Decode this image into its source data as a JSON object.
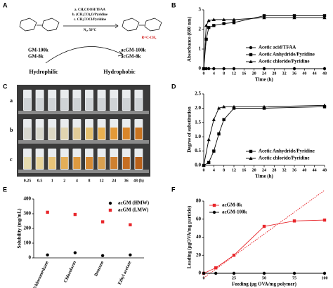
{
  "panel_labels": [
    "A",
    "B",
    "C",
    "D",
    "E",
    "F"
  ],
  "scheme": {
    "conditions": [
      "a. CH₃COOH/TFAA",
      "b. (CH₃CO)₂O/Pyridine",
      "c. CH₃COCl/Pyridine",
      "N₂, 50°C"
    ],
    "start": [
      "GM-100k",
      "GM-8k"
    ],
    "product": [
      "acGM-100k",
      "acGM-8k"
    ],
    "left_label": "Hydrophilic",
    "right_label": "Hydrophobic",
    "r_group": "R=C-CH₃"
  },
  "photo": {
    "rows": [
      "a",
      "b",
      "c"
    ],
    "times": [
      "0.25",
      "0.5",
      "1",
      "2",
      "4",
      "8",
      "12",
      "24",
      "36",
      "48 (h)"
    ]
  },
  "chart_data": [
    {
      "type": "line",
      "x_label": "Time (h)",
      "y_label": "Absorbance (600 nm)",
      "x": [
        0,
        1,
        2,
        4,
        8,
        12,
        24,
        36,
        48
      ],
      "xlim": [
        0,
        48
      ],
      "xticks": [
        0,
        4,
        8,
        12,
        16,
        20,
        24,
        28,
        32,
        36,
        40,
        44,
        48
      ],
      "ylim": [
        0,
        3
      ],
      "yticks": [
        0,
        1,
        2,
        3
      ],
      "legend": "lower right",
      "series": [
        {
          "name": "Acetic acid/TFAA",
          "color": "#000000",
          "marker": "circle",
          "values": [
            0,
            0,
            0,
            0,
            0,
            0,
            0,
            0,
            0
          ]
        },
        {
          "name": "Acetic Anhydride/Pyridine",
          "color": "#000000",
          "marker": "square",
          "values": [
            0,
            1.5,
            2.1,
            2.2,
            2.3,
            2.35,
            2.7,
            2.7,
            2.7
          ]
        },
        {
          "name": "Acetic chloride/Pyridine",
          "color": "#000000",
          "marker": "triangle",
          "values": [
            0,
            2.2,
            2.45,
            2.5,
            2.5,
            2.5,
            2.6,
            2.6,
            2.6
          ]
        }
      ]
    },
    {
      "type": "line",
      "x_label": "Time (h)",
      "y_label": "Degree of substitution",
      "x": [
        0,
        2,
        4,
        6,
        8,
        12,
        24,
        48
      ],
      "xlim": [
        0,
        48
      ],
      "xticks": [
        0,
        4,
        8,
        12,
        16,
        20,
        24,
        28,
        32,
        36,
        40,
        44,
        48
      ],
      "ylim": [
        0,
        2.5
      ],
      "yticks": [
        {
          "value": 0,
          "label": "0.0"
        },
        0.5,
        {
          "value": 1,
          "label": "1.0"
        },
        1.5,
        {
          "value": 2,
          "label": "2.0"
        },
        2.5
      ],
      "legend": "lower right",
      "series": [
        {
          "name": "Acetic Anhydride/Pyridine",
          "color": "#000000",
          "marker": "square",
          "values": [
            0,
            0.1,
            0.5,
            1.1,
            1.6,
            2.0,
            2.0,
            2.05
          ]
        },
        {
          "name": "Acetic chloride/Pyridine",
          "color": "#000000",
          "marker": "triangle",
          "values": [
            0,
            0.9,
            1.6,
            2.0,
            2.05,
            2.05,
            2.05,
            2.1
          ]
        }
      ]
    },
    {
      "type": "scatter",
      "y_label": "Solubility (mg/mL)",
      "categories": [
        "Dichloromethane",
        "Chloroform",
        "Benzene",
        "Ethyl acetate"
      ],
      "ylim": [
        0,
        400
      ],
      "yticks": [
        0,
        100,
        200,
        300,
        400
      ],
      "legend": "upper right",
      "series": [
        {
          "name": "acGM (HMW)",
          "color": "#000000",
          "marker": "circle",
          "values": [
            20,
            35,
            15,
            20
          ]
        },
        {
          "name": "acGM (LMW)",
          "color": "#e8262b",
          "marker": "square",
          "values": [
            310,
            295,
            245,
            225
          ]
        }
      ]
    },
    {
      "type": "line",
      "x_label": "Feeding (μg OVA/mg polymer)",
      "y_label": "Loading (μgOVA/mg particle)",
      "x": [
        0,
        10,
        25,
        50,
        75,
        100
      ],
      "xlim": [
        0,
        100
      ],
      "xticks": [
        0,
        25,
        50,
        75,
        100
      ],
      "ylim": [
        0,
        80
      ],
      "yticks": [
        0,
        20,
        40,
        60,
        80
      ],
      "legend": "upper left",
      "series": [
        {
          "name": "acGM-8k",
          "color": "#e8262b",
          "marker": "square",
          "values": [
            0,
            6,
            20,
            52,
            58,
            59
          ]
        },
        {
          "name": "acGM-100k",
          "color": "#000000",
          "marker": "circle",
          "values": [
            0,
            0,
            0,
            0,
            0,
            0
          ]
        },
        {
          "color": "#e8262b",
          "style": "dotted",
          "x": [
            0,
            100
          ],
          "values": [
            -5,
            92
          ]
        }
      ]
    }
  ]
}
